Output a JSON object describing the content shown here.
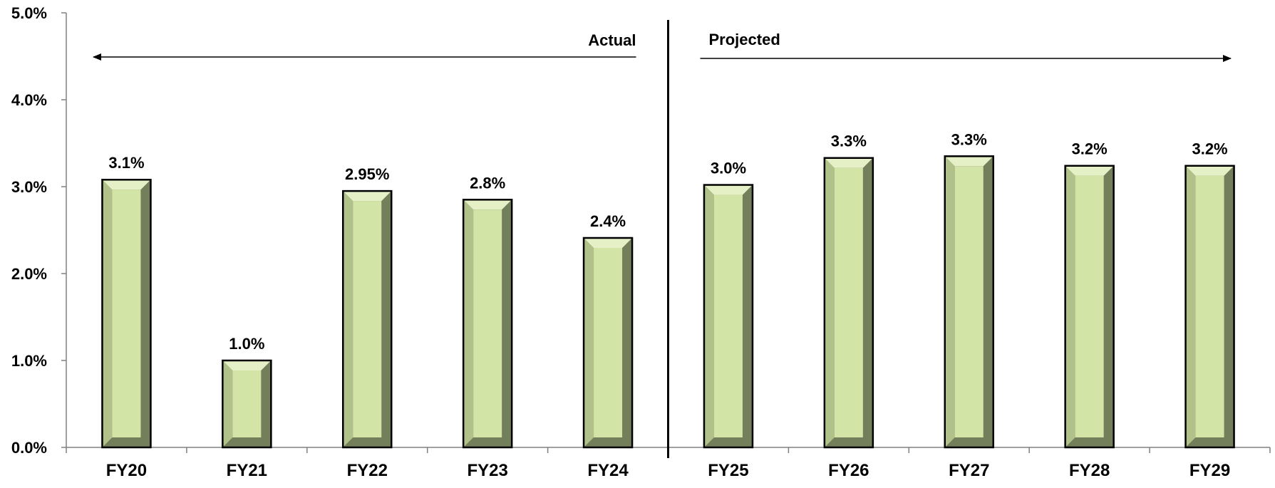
{
  "chart_data": {
    "type": "bar",
    "categories": [
      "FY20",
      "FY21",
      "FY22",
      "FY23",
      "FY24",
      "FY25",
      "FY26",
      "FY27",
      "FY28",
      "FY29"
    ],
    "values": [
      3.08,
      1.0,
      2.95,
      2.85,
      2.41,
      3.02,
      3.33,
      3.35,
      3.24,
      3.24
    ],
    "data_labels": [
      "3.1%",
      "1.0%",
      "2.95%",
      "2.8%",
      "2.4%",
      "3.0%",
      "3.3%",
      "3.3%",
      "3.2%",
      "3.2%"
    ],
    "ylim": [
      0,
      5
    ],
    "yticks": [
      0,
      1,
      2,
      3,
      4,
      5
    ],
    "ytick_labels": [
      "0.0%",
      "1.0%",
      "2.0%",
      "3.0%",
      "4.0%",
      "5.0%"
    ],
    "title": "",
    "xlabel": "",
    "ylabel": "",
    "grid": false,
    "legend": "none",
    "annotations": {
      "actual_label": "Actual",
      "projected_label": "Projected"
    },
    "actual_count": 5,
    "colors": {
      "bar_face": "#d3e4a7",
      "bar_bevel_light": "#b0c28a",
      "bar_bevel_dark": "#737f5a",
      "bar_bevel_top": "#e6f0c6",
      "bar_outline": "#000000",
      "axis": "#808080"
    }
  }
}
